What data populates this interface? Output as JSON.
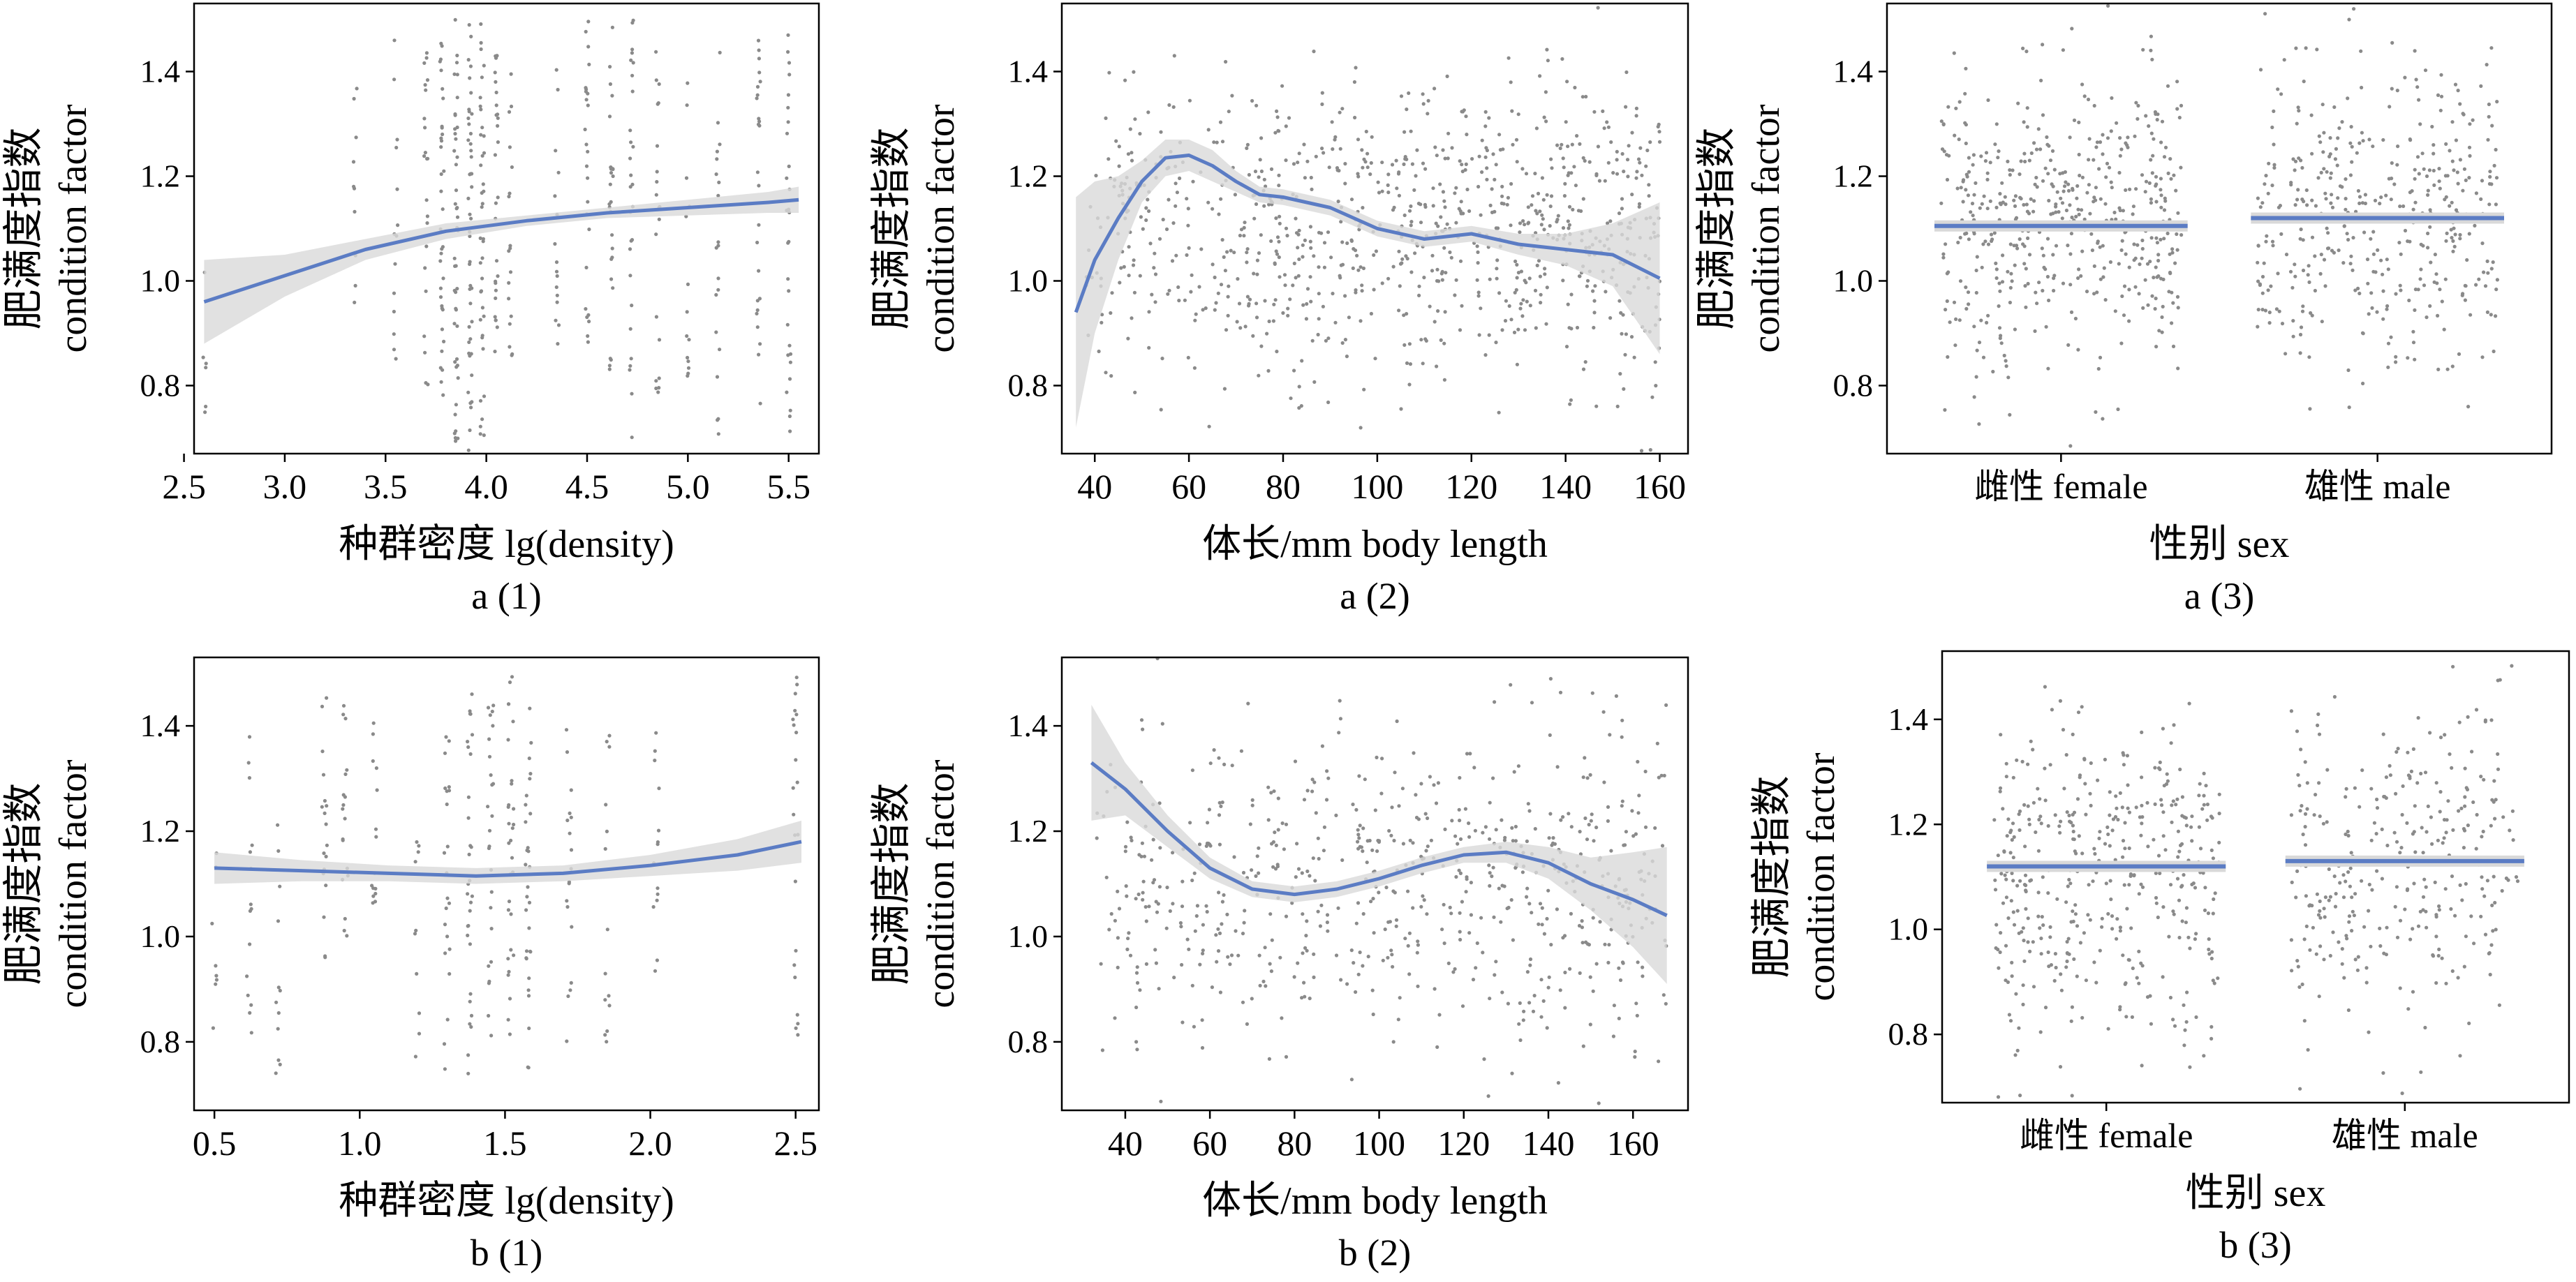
{
  "chart_data": [
    {
      "id": "a1",
      "type": "scatter",
      "subtitle": "a (1)",
      "xlabel": "种群密度 lg(density)",
      "ylabel": [
        "肥满度指数",
        "condition factor"
      ],
      "xlim": [
        2.55,
        5.65
      ],
      "ylim": [
        0.67,
        1.53
      ],
      "xticks": [
        2.5,
        3.0,
        3.5,
        4.0,
        4.5,
        5.0,
        5.5
      ],
      "xticklabels": [
        "2.5",
        "3.0",
        "3.5",
        "4.0",
        "4.5",
        "5.0",
        "5.5"
      ],
      "yticks": [
        0.8,
        1.0,
        1.2,
        1.4
      ],
      "yticklabels": [
        "0.8",
        "1.0",
        "1.2",
        "1.4"
      ],
      "scatter_columns": [
        {
          "x": 2.6,
          "ymin": 0.7,
          "ymax": 1.05,
          "n": 6
        },
        {
          "x": 3.35,
          "ymin": 0.95,
          "ymax": 1.42,
          "n": 10
        },
        {
          "x": 3.55,
          "ymin": 0.85,
          "ymax": 1.5,
          "n": 14
        },
        {
          "x": 3.7,
          "ymin": 0.8,
          "ymax": 1.45,
          "n": 22
        },
        {
          "x": 3.78,
          "ymin": 0.7,
          "ymax": 1.5,
          "n": 35
        },
        {
          "x": 3.85,
          "ymin": 0.67,
          "ymax": 1.5,
          "n": 45
        },
        {
          "x": 3.92,
          "ymin": 0.67,
          "ymax": 1.5,
          "n": 45
        },
        {
          "x": 3.98,
          "ymin": 0.7,
          "ymax": 1.5,
          "n": 40
        },
        {
          "x": 4.05,
          "ymin": 0.8,
          "ymax": 1.45,
          "n": 28
        },
        {
          "x": 4.12,
          "ymin": 0.85,
          "ymax": 1.4,
          "n": 18
        },
        {
          "x": 4.35,
          "ymin": 0.85,
          "ymax": 1.42,
          "n": 16
        },
        {
          "x": 4.5,
          "ymin": 0.85,
          "ymax": 1.5,
          "n": 25
        },
        {
          "x": 4.62,
          "ymin": 0.8,
          "ymax": 1.5,
          "n": 28
        },
        {
          "x": 4.72,
          "ymin": 0.7,
          "ymax": 1.5,
          "n": 28
        },
        {
          "x": 4.85,
          "ymin": 0.75,
          "ymax": 1.45,
          "n": 20
        },
        {
          "x": 5.0,
          "ymin": 0.8,
          "ymax": 1.4,
          "n": 14
        },
        {
          "x": 5.15,
          "ymin": 0.7,
          "ymax": 1.45,
          "n": 20
        },
        {
          "x": 5.35,
          "ymin": 0.72,
          "ymax": 1.48,
          "n": 25
        },
        {
          "x": 5.5,
          "ymin": 0.7,
          "ymax": 1.48,
          "n": 28
        }
      ],
      "scatter_random": null,
      "fit": {
        "x": [
          2.6,
          3.0,
          3.4,
          3.8,
          4.2,
          4.6,
          5.0,
          5.4,
          5.55
        ],
        "y": [
          0.96,
          1.01,
          1.06,
          1.095,
          1.115,
          1.13,
          1.14,
          1.15,
          1.155
        ]
      },
      "ci": {
        "x": [
          2.6,
          3.0,
          3.4,
          3.8,
          4.2,
          4.6,
          5.0,
          5.4,
          5.55
        ],
        "upper": [
          1.04,
          1.05,
          1.08,
          1.11,
          1.125,
          1.14,
          1.155,
          1.17,
          1.18
        ],
        "lower": [
          0.88,
          0.97,
          1.04,
          1.08,
          1.105,
          1.12,
          1.125,
          1.13,
          1.13
        ]
      }
    },
    {
      "id": "a2",
      "type": "scatter",
      "subtitle": "a (2)",
      "xlabel": "体长/mm body length",
      "ylabel": [
        "肥满度指数",
        "condition factor"
      ],
      "xlim": [
        33,
        166
      ],
      "ylim": [
        0.67,
        1.53
      ],
      "xticks": [
        40,
        60,
        80,
        100,
        120,
        140,
        160
      ],
      "xticklabels": [
        "40",
        "60",
        "80",
        "100",
        "120",
        "140",
        "160"
      ],
      "yticks": [
        0.8,
        1.0,
        1.2,
        1.4
      ],
      "yticklabels": [
        "0.8",
        "1.0",
        "1.2",
        "1.4"
      ],
      "scatter_columns": null,
      "scatter_random": {
        "n": 900,
        "xrange": [
          38,
          160
        ],
        "ycenter": 1.1,
        "yspread": 0.2,
        "seed": 11
      },
      "fit": {
        "x": [
          36,
          40,
          45,
          50,
          55,
          60,
          65,
          70,
          75,
          80,
          90,
          100,
          110,
          120,
          130,
          140,
          150,
          160
        ],
        "y": [
          0.94,
          1.04,
          1.12,
          1.19,
          1.235,
          1.24,
          1.22,
          1.19,
          1.165,
          1.16,
          1.14,
          1.1,
          1.08,
          1.09,
          1.07,
          1.06,
          1.05,
          1.005
        ]
      },
      "ci": {
        "x": [
          36,
          40,
          45,
          50,
          55,
          60,
          65,
          70,
          75,
          80,
          90,
          100,
          110,
          120,
          130,
          140,
          150,
          160
        ],
        "upper": [
          1.16,
          1.19,
          1.2,
          1.23,
          1.27,
          1.27,
          1.25,
          1.21,
          1.18,
          1.175,
          1.155,
          1.115,
          1.095,
          1.105,
          1.09,
          1.09,
          1.11,
          1.15
        ],
        "lower": [
          0.72,
          0.9,
          1.04,
          1.15,
          1.2,
          1.21,
          1.19,
          1.17,
          1.15,
          1.145,
          1.125,
          1.085,
          1.065,
          1.075,
          1.05,
          1.03,
          0.99,
          0.86
        ]
      }
    },
    {
      "id": "a3",
      "type": "scatter",
      "subtitle": "a (3)",
      "xlabel": "性别 sex",
      "ylabel": [
        "肥满度指数",
        "condition factor"
      ],
      "xlim": [
        0.45,
        2.55
      ],
      "ylim": [
        0.67,
        1.53
      ],
      "xticks": [
        1,
        2
      ],
      "xticklabels": [
        "雌性 female",
        "雄性 male"
      ],
      "yticks": [
        0.8,
        1.0,
        1.2,
        1.4
      ],
      "yticklabels": [
        "0.8",
        "1.0",
        "1.2",
        "1.4"
      ],
      "scatter_groups": [
        {
          "x": 1,
          "n": 500,
          "ycenter": 1.1,
          "yspread": 0.2
        },
        {
          "x": 2,
          "n": 420,
          "ycenter": 1.12,
          "yspread": 0.2
        }
      ],
      "group_means": [
        1.105,
        1.12
      ]
    },
    {
      "id": "b1",
      "type": "scatter",
      "subtitle": "b (1)",
      "xlabel": "种群密度 lg(density)",
      "ylabel": [
        "肥满度指数",
        "condition factor"
      ],
      "xlim": [
        0.43,
        2.58
      ],
      "ylim": [
        0.67,
        1.53
      ],
      "xticks": [
        0.5,
        1.0,
        1.5,
        2.0,
        2.5
      ],
      "xticklabels": [
        "0.5",
        "1.0",
        "1.5",
        "2.0",
        "2.5"
      ],
      "yticks": [
        0.8,
        1.0,
        1.2,
        1.4
      ],
      "yticklabels": [
        "0.8",
        "1.0",
        "1.2",
        "1.4"
      ],
      "scatter_columns": [
        {
          "x": 0.5,
          "ymin": 0.8,
          "ymax": 1.2,
          "n": 8
        },
        {
          "x": 0.62,
          "ymin": 0.8,
          "ymax": 1.4,
          "n": 15
        },
        {
          "x": 0.72,
          "ymin": 0.7,
          "ymax": 1.3,
          "n": 12
        },
        {
          "x": 0.88,
          "ymin": 0.95,
          "ymax": 1.47,
          "n": 18
        },
        {
          "x": 0.95,
          "ymin": 1.0,
          "ymax": 1.48,
          "n": 18
        },
        {
          "x": 1.05,
          "ymin": 1.0,
          "ymax": 1.42,
          "n": 15
        },
        {
          "x": 1.2,
          "ymin": 0.75,
          "ymax": 1.2,
          "n": 10
        },
        {
          "x": 1.3,
          "ymin": 0.7,
          "ymax": 1.45,
          "n": 22
        },
        {
          "x": 1.38,
          "ymin": 0.72,
          "ymax": 1.48,
          "n": 30
        },
        {
          "x": 1.45,
          "ymin": 0.8,
          "ymax": 1.45,
          "n": 25
        },
        {
          "x": 1.52,
          "ymin": 0.75,
          "ymax": 1.5,
          "n": 30
        },
        {
          "x": 1.58,
          "ymin": 0.75,
          "ymax": 1.5,
          "n": 30
        },
        {
          "x": 1.72,
          "ymin": 0.8,
          "ymax": 1.4,
          "n": 18
        },
        {
          "x": 1.85,
          "ymin": 0.8,
          "ymax": 1.4,
          "n": 14
        },
        {
          "x": 2.02,
          "ymin": 0.8,
          "ymax": 1.42,
          "n": 14
        },
        {
          "x": 2.5,
          "ymin": 0.8,
          "ymax": 1.5,
          "n": 22
        }
      ],
      "scatter_random": null,
      "fit": {
        "x": [
          0.5,
          0.8,
          1.1,
          1.4,
          1.7,
          2.0,
          2.3,
          2.52
        ],
        "y": [
          1.13,
          1.125,
          1.12,
          1.115,
          1.12,
          1.135,
          1.155,
          1.18
        ]
      },
      "ci": {
        "x": [
          0.5,
          0.8,
          1.1,
          1.4,
          1.7,
          2.0,
          2.3,
          2.52
        ],
        "upper": [
          1.16,
          1.145,
          1.135,
          1.13,
          1.135,
          1.155,
          1.185,
          1.22
        ],
        "lower": [
          1.1,
          1.105,
          1.105,
          1.1,
          1.105,
          1.115,
          1.125,
          1.14
        ]
      }
    },
    {
      "id": "b2",
      "type": "scatter",
      "subtitle": "b (2)",
      "xlabel": "体长/mm body length",
      "ylabel": [
        "肥满度指数",
        "condition factor"
      ],
      "xlim": [
        25,
        173
      ],
      "ylim": [
        0.67,
        1.53
      ],
      "xticks": [
        40,
        60,
        80,
        100,
        120,
        140,
        160
      ],
      "xticklabels": [
        "40",
        "60",
        "80",
        "100",
        "120",
        "140",
        "160"
      ],
      "yticks": [
        0.8,
        1.0,
        1.2,
        1.4
      ],
      "yticklabels": [
        "0.8",
        "1.0",
        "1.2",
        "1.4"
      ],
      "scatter_columns": null,
      "scatter_random": {
        "n": 650,
        "xrange": [
          32,
          168
        ],
        "ycenter": 1.1,
        "yspread": 0.2,
        "seed": 23
      },
      "fit": {
        "x": [
          32,
          40,
          50,
          60,
          70,
          80,
          90,
          100,
          110,
          120,
          130,
          140,
          150,
          160,
          168
        ],
        "y": [
          1.33,
          1.28,
          1.2,
          1.13,
          1.09,
          1.08,
          1.09,
          1.11,
          1.135,
          1.155,
          1.16,
          1.14,
          1.1,
          1.07,
          1.04
        ]
      },
      "ci": {
        "x": [
          32,
          40,
          50,
          60,
          70,
          80,
          90,
          100,
          110,
          120,
          130,
          140,
          150,
          160,
          168
        ],
        "upper": [
          1.44,
          1.33,
          1.23,
          1.15,
          1.105,
          1.095,
          1.105,
          1.125,
          1.15,
          1.17,
          1.18,
          1.17,
          1.15,
          1.16,
          1.17
        ],
        "lower": [
          1.22,
          1.23,
          1.17,
          1.11,
          1.075,
          1.065,
          1.075,
          1.095,
          1.12,
          1.14,
          1.14,
          1.11,
          1.05,
          0.98,
          0.91
        ]
      }
    },
    {
      "id": "b3",
      "type": "scatter",
      "subtitle": "b (3)",
      "xlabel": "性别 sex",
      "ylabel": [
        "肥满度指数",
        "condition factor"
      ],
      "xlim": [
        0.45,
        2.55
      ],
      "ylim": [
        0.67,
        1.53
      ],
      "xticks": [
        1,
        2
      ],
      "xticklabels": [
        "雌性 female",
        "雄性 male"
      ],
      "yticks": [
        0.8,
        1.0,
        1.2,
        1.4
      ],
      "yticklabels": [
        "0.8",
        "1.0",
        "1.2",
        "1.4"
      ],
      "scatter_groups": [
        {
          "x": 1,
          "n": 420,
          "ycenter": 1.1,
          "yspread": 0.2
        },
        {
          "x": 2,
          "n": 320,
          "ycenter": 1.12,
          "yspread": 0.2
        }
      ],
      "group_means": [
        1.12,
        1.13
      ]
    }
  ],
  "colors": {
    "fit": "#5b7cc4",
    "ci": "#d9d9d9",
    "points": "#8a8a8a",
    "axis": "#000000"
  }
}
